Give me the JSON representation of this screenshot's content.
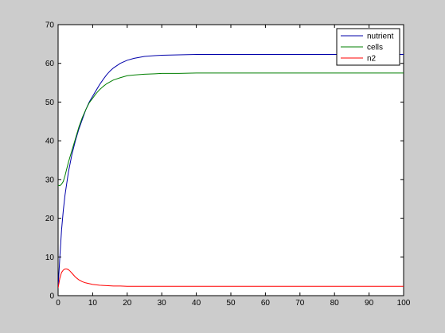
{
  "chart_data": {
    "type": "line",
    "title": "",
    "xlabel": "",
    "ylabel": "",
    "xlim": [
      0,
      100
    ],
    "ylim": [
      0,
      70
    ],
    "xticks": [
      0,
      10,
      20,
      30,
      40,
      50,
      60,
      70,
      80,
      90,
      100
    ],
    "yticks": [
      0,
      10,
      20,
      30,
      40,
      50,
      60,
      70
    ],
    "grid": false,
    "legend_position": "top-right",
    "series": [
      {
        "name": "nutrient",
        "color": "#0000aa",
        "x": [
          0,
          0.5,
          1,
          1.5,
          2,
          3,
          4,
          5,
          6,
          7,
          8,
          9,
          10,
          11,
          12,
          13,
          14,
          15,
          16,
          18,
          20,
          22,
          25,
          28,
          30,
          35,
          40,
          50,
          60,
          70,
          80,
          90,
          100
        ],
        "y": [
          2,
          10,
          17,
          22,
          26,
          32,
          36.5,
          40,
          43,
          45.5,
          48,
          50,
          51.5,
          53,
          54.5,
          55.8,
          57,
          58,
          58.8,
          60,
          60.8,
          61.3,
          61.8,
          62,
          62.1,
          62.2,
          62.3,
          62.3,
          62.3,
          62.3,
          62.3,
          62.3,
          62.3
        ]
      },
      {
        "name": "cells",
        "color": "#007f00",
        "x": [
          0,
          0.5,
          1,
          1.5,
          2,
          3,
          4,
          5,
          6,
          7,
          8,
          9,
          10,
          11,
          12,
          13,
          14,
          15,
          16,
          18,
          20,
          22,
          25,
          28,
          30,
          35,
          40,
          50,
          60,
          70,
          80,
          90,
          100
        ],
        "y": [
          28.5,
          28.4,
          28.8,
          29.5,
          31,
          34.5,
          37.5,
          40.5,
          43.5,
          46,
          48,
          49.8,
          51,
          52.2,
          53.2,
          54,
          54.7,
          55.2,
          55.7,
          56.3,
          56.8,
          57,
          57.2,
          57.3,
          57.4,
          57.4,
          57.5,
          57.5,
          57.5,
          57.5,
          57.5,
          57.5,
          57.5
        ]
      },
      {
        "name": "n2",
        "color": "#ff0000",
        "x": [
          0,
          0.5,
          1,
          1.5,
          2,
          2.5,
          3,
          3.5,
          4,
          5,
          6,
          7,
          8,
          9,
          10,
          12,
          14,
          16,
          18,
          20,
          25,
          30,
          40,
          50,
          60,
          70,
          80,
          90,
          100
        ],
        "y": [
          2,
          4.5,
          6,
          6.6,
          6.9,
          6.9,
          6.7,
          6.3,
          5.8,
          4.8,
          4.1,
          3.6,
          3.3,
          3.1,
          2.9,
          2.7,
          2.6,
          2.5,
          2.5,
          2.4,
          2.4,
          2.4,
          2.4,
          2.4,
          2.4,
          2.4,
          2.4,
          2.4,
          2.4
        ]
      }
    ]
  }
}
